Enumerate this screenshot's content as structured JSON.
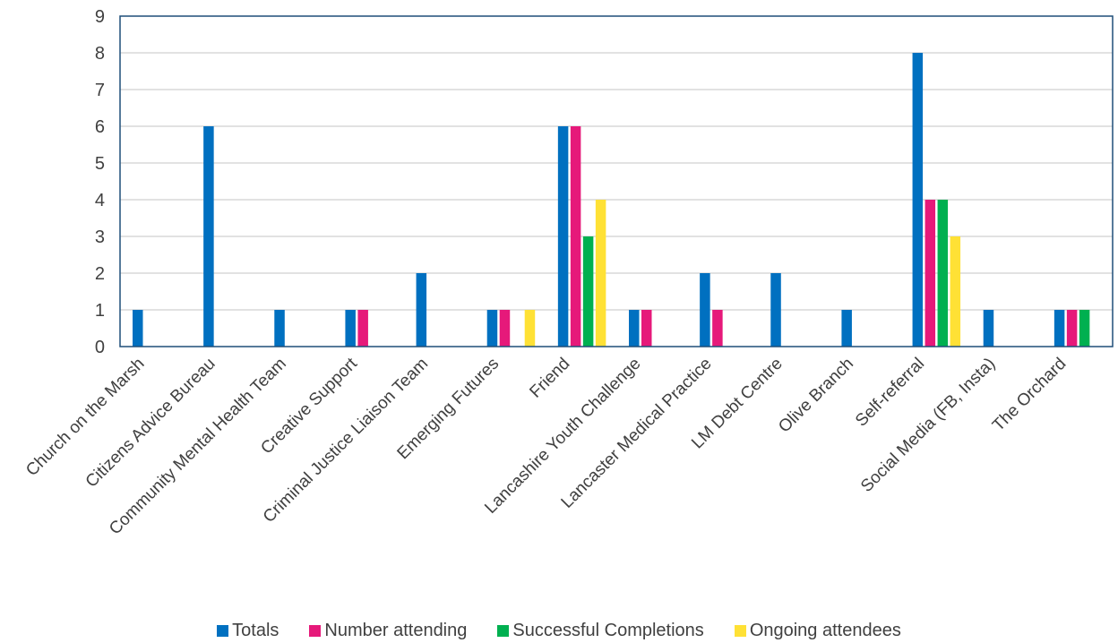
{
  "chart_data": {
    "type": "bar",
    "title": "",
    "xlabel": "",
    "ylabel": "",
    "ylim": [
      0,
      9
    ],
    "yticks": [
      "0",
      "1",
      "2",
      "3",
      "4",
      "5",
      "6",
      "7",
      "8",
      "9"
    ],
    "grid": true,
    "legend_position": "bottom",
    "categories": [
      "Church on the Marsh",
      "Citizens Advice Bureau",
      "Community Mental Health Team",
      "Creative Support",
      "Criminal Justice Liaison Team",
      "Emerging Futures",
      "Friend",
      "Lancashire Youth Challenge",
      "Lancaster Medical Practice",
      "LM Debt Centre",
      "Olive Branch",
      "Self-referral",
      "Social Media (FB, Insta)",
      "The Orchard"
    ],
    "series": [
      {
        "name": "Totals",
        "color": "#0070C0",
        "values": [
          1,
          6,
          1,
          1,
          2,
          1,
          6,
          1,
          2,
          2,
          1,
          8,
          1,
          1
        ]
      },
      {
        "name": "Number attending",
        "color": "#E6197A",
        "values": [
          0,
          0,
          0,
          1,
          0,
          1,
          6,
          1,
          1,
          0,
          0,
          4,
          0,
          1
        ]
      },
      {
        "name": "Successful Completions",
        "color": "#00B050",
        "values": [
          0,
          0,
          0,
          0,
          0,
          0,
          3,
          0,
          0,
          0,
          0,
          4,
          0,
          1
        ]
      },
      {
        "name": "Ongoing attendees",
        "color": "#FFE135",
        "values": [
          0,
          0,
          0,
          0,
          0,
          1,
          4,
          0,
          0,
          0,
          0,
          3,
          0,
          0
        ]
      }
    ]
  }
}
